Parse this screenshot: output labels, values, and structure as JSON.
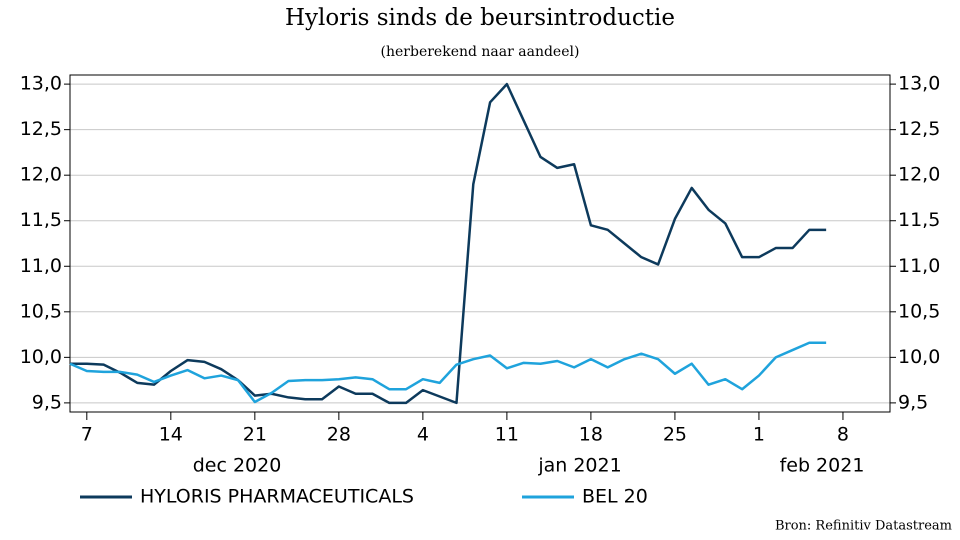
{
  "chart_data": {
    "type": "line",
    "title": "Hyloris sinds de beursintroductie",
    "subtitle": "(herberekend naar aandeel)",
    "source": "Bron: Refinitiv Datastream",
    "month_labels": [
      "dec 2020",
      "jan 2021",
      "feb 2021"
    ],
    "x": [
      0,
      1,
      2,
      3,
      4,
      5,
      6,
      7,
      8,
      9,
      10,
      11,
      12,
      13,
      14,
      15,
      16,
      17,
      18,
      19,
      20,
      21,
      22,
      23,
      24,
      25,
      26,
      27,
      28,
      29,
      30,
      31,
      32,
      33,
      34,
      35,
      36,
      37,
      38,
      39,
      40,
      41,
      42,
      43,
      44,
      45
    ],
    "xlim": [
      0,
      48.8
    ],
    "xticks": [
      {
        "value": 1,
        "label": "7"
      },
      {
        "value": 6,
        "label": "14"
      },
      {
        "value": 11,
        "label": "21"
      },
      {
        "value": 16,
        "label": "28"
      },
      {
        "value": 21,
        "label": "4"
      },
      {
        "value": 26,
        "label": "11"
      },
      {
        "value": 31,
        "label": "18"
      },
      {
        "value": 36,
        "label": "25"
      },
      {
        "value": 41,
        "label": "1"
      },
      {
        "value": 46,
        "label": "8"
      }
    ],
    "ylim": [
      9.4,
      13.1
    ],
    "yticks": [
      {
        "value": 9.5,
        "label": "9,5"
      },
      {
        "value": 10,
        "label": "10,0"
      },
      {
        "value": 10.5,
        "label": "10,5"
      },
      {
        "value": 11,
        "label": "11,0"
      },
      {
        "value": 11.5,
        "label": "11,5"
      },
      {
        "value": 12,
        "label": "12,0"
      },
      {
        "value": 12.5,
        "label": "12,5"
      },
      {
        "value": 13,
        "label": "13,0"
      }
    ],
    "grid": true,
    "series": [
      {
        "name": "HYLORIS PHARMACEUTICALS",
        "color": "#0d3a5c",
        "values": [
          9.93,
          9.93,
          9.92,
          9.83,
          9.72,
          9.7,
          9.85,
          9.97,
          9.95,
          9.87,
          9.75,
          9.58,
          9.6,
          9.56,
          9.54,
          9.54,
          9.68,
          9.6,
          9.6,
          9.5,
          9.5,
          9.64,
          9.57,
          9.5,
          11.9,
          12.8,
          13.0,
          12.6,
          12.2,
          12.08,
          12.12,
          11.45,
          11.4,
          11.25,
          11.1,
          11.02,
          11.52,
          11.86,
          11.62,
          11.47,
          11.1,
          11.1,
          11.2,
          11.2,
          11.4,
          11.4
        ]
      },
      {
        "name": "BEL 20",
        "color": "#1fa3dc",
        "values": [
          9.93,
          9.85,
          9.84,
          9.84,
          9.81,
          9.73,
          9.8,
          9.86,
          9.77,
          9.8,
          9.75,
          9.51,
          9.61,
          9.74,
          9.75,
          9.75,
          9.76,
          9.78,
          9.76,
          9.65,
          9.65,
          9.76,
          9.72,
          9.92,
          9.98,
          10.02,
          9.88,
          9.94,
          9.93,
          9.96,
          9.89,
          9.98,
          9.89,
          9.98,
          10.04,
          9.98,
          9.82,
          9.93,
          9.7,
          9.76,
          9.65,
          9.8,
          10.0,
          10.08,
          10.16,
          10.16
        ]
      }
    ]
  }
}
